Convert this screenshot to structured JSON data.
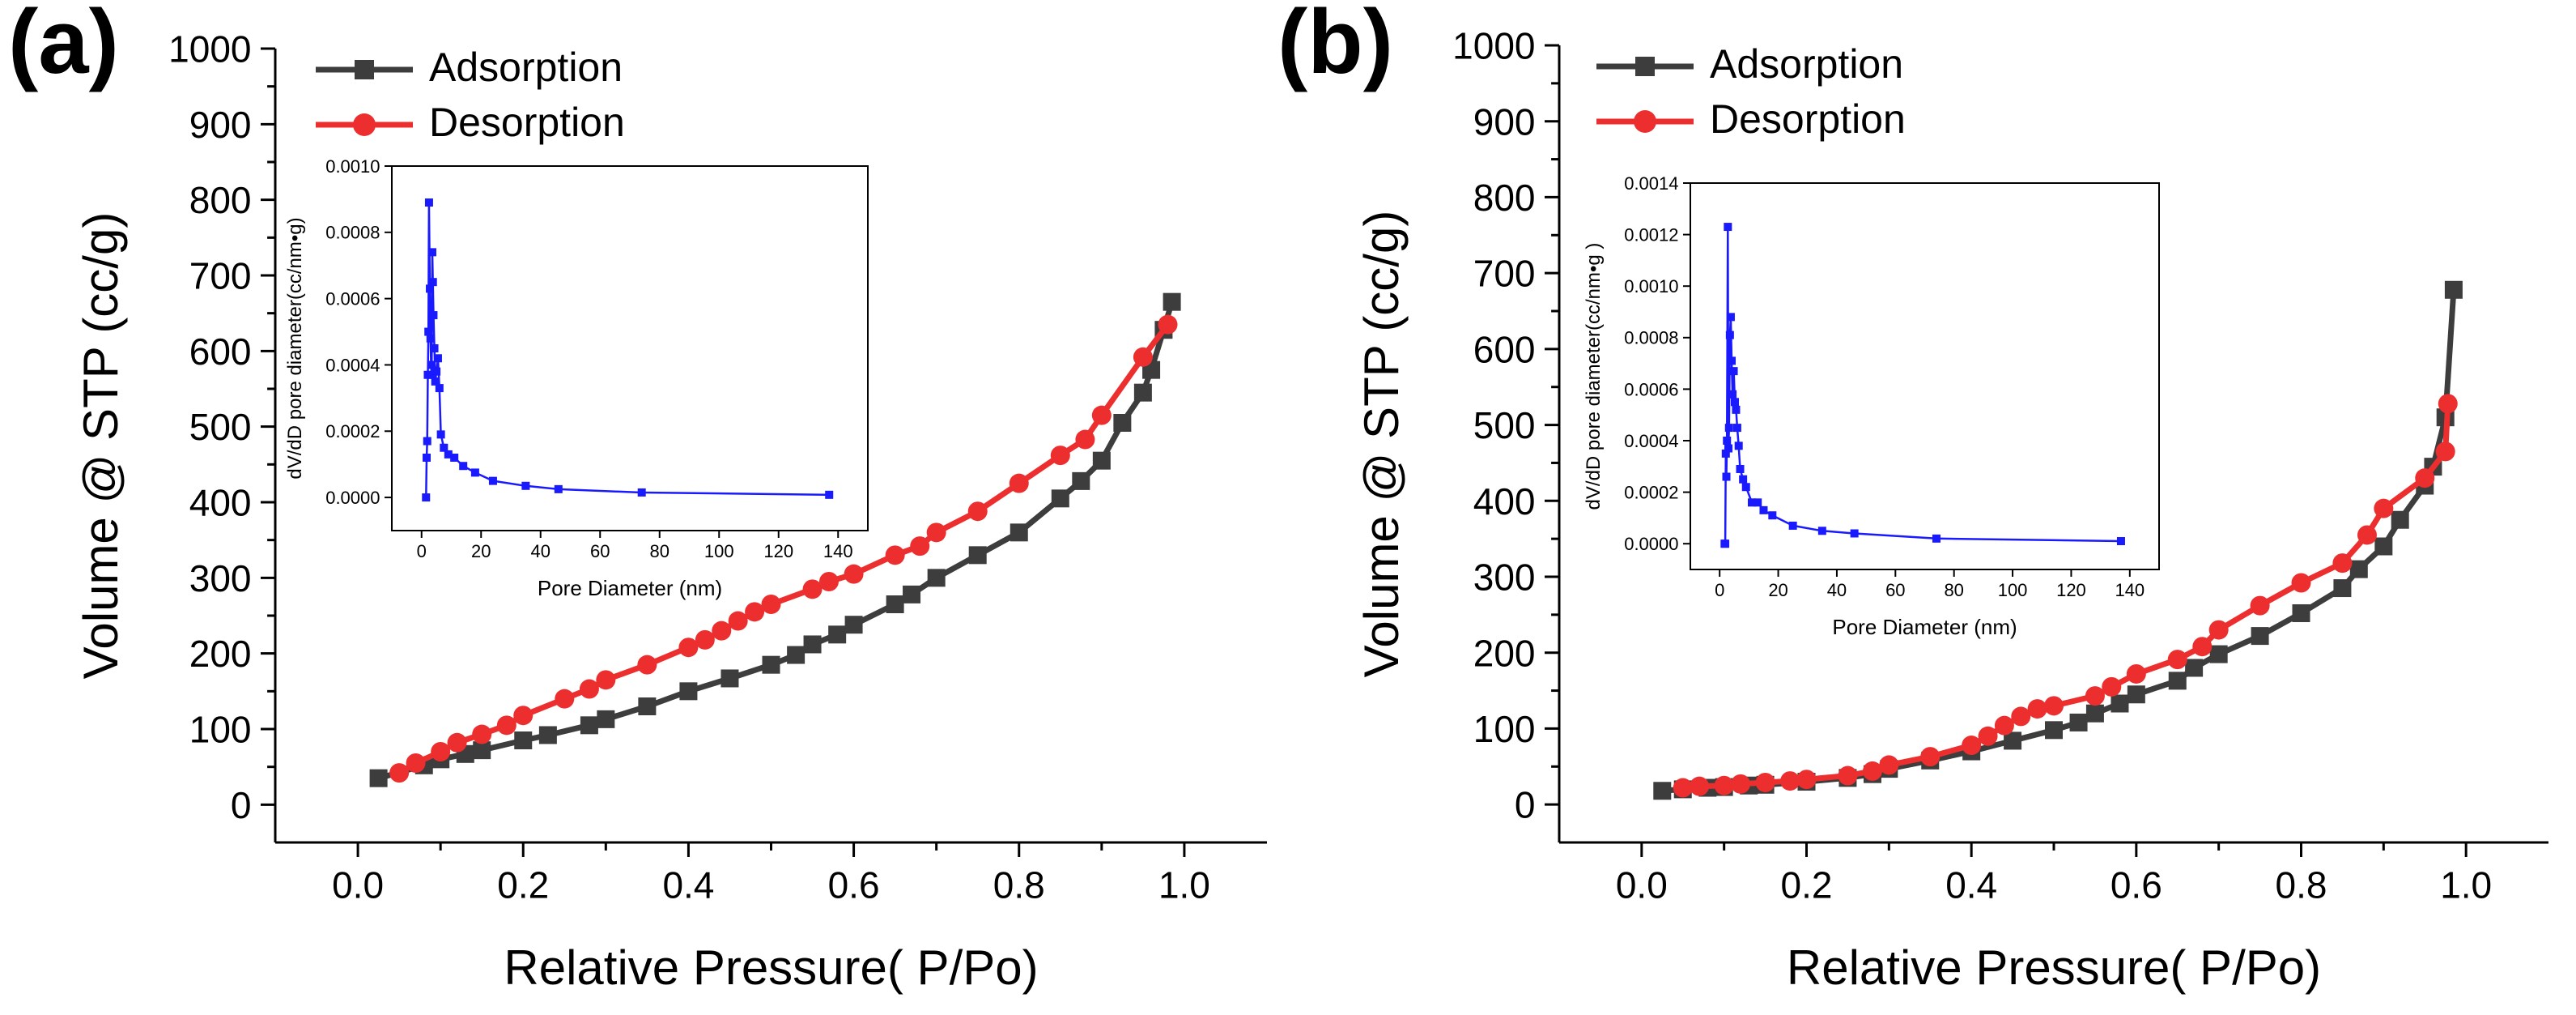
{
  "colors": {
    "adsorption": "#3d3d3d",
    "desorption": "#ed2e2e",
    "inset": "#1a1aff",
    "axis": "#000000"
  },
  "chart_data": [
    {
      "panel_label": "(a)",
      "type": "line",
      "xlabel": "Relative Pressure( P/Po)",
      "ylabel": "Volume @ STP (cc/g)",
      "xlim": [
        -0.1,
        1.1
      ],
      "ylim": [
        -50,
        1000
      ],
      "xticks": [
        "0.0",
        "0.2",
        "0.4",
        "0.6",
        "0.8",
        "1.0"
      ],
      "xtick_values": [
        0,
        0.2,
        0.4,
        0.6,
        0.8,
        1.0
      ],
      "yticks": [
        "0",
        "100",
        "200",
        "300",
        "400",
        "500",
        "600",
        "700",
        "800",
        "900",
        "1000"
      ],
      "ytick_values": [
        0,
        100,
        200,
        300,
        400,
        500,
        600,
        700,
        800,
        900,
        1000
      ],
      "legend": [
        "Adsorption",
        "Desorption"
      ],
      "series": [
        {
          "name": "Adsorption",
          "marker": "square",
          "x": [
            0.025,
            0.08,
            0.1,
            0.13,
            0.15,
            0.2,
            0.23,
            0.28,
            0.3,
            0.35,
            0.4,
            0.45,
            0.5,
            0.53,
            0.55,
            0.58,
            0.6,
            0.65,
            0.67,
            0.7,
            0.75,
            0.8,
            0.85,
            0.875,
            0.9,
            0.925,
            0.95,
            0.96,
            0.975,
            0.985
          ],
          "y": [
            35,
            52,
            60,
            67,
            72,
            85,
            92,
            105,
            113,
            130,
            150,
            167,
            185,
            198,
            212,
            225,
            238,
            265,
            278,
            300,
            330,
            360,
            405,
            428,
            455,
            505,
            545,
            575,
            628,
            665
          ]
        },
        {
          "name": "Desorption",
          "marker": "circle",
          "x": [
            0.05,
            0.07,
            0.1,
            0.12,
            0.15,
            0.18,
            0.2,
            0.25,
            0.28,
            0.3,
            0.35,
            0.4,
            0.42,
            0.44,
            0.46,
            0.48,
            0.5,
            0.55,
            0.57,
            0.6,
            0.65,
            0.68,
            0.7,
            0.75,
            0.8,
            0.85,
            0.88,
            0.9,
            0.95,
            0.98
          ],
          "y": [
            42,
            55,
            70,
            82,
            93,
            105,
            118,
            140,
            153,
            165,
            185,
            208,
            218,
            230,
            243,
            255,
            265,
            285,
            295,
            305,
            330,
            342,
            360,
            388,
            425,
            462,
            483,
            515,
            592,
            635
          ]
        }
      ],
      "inset": {
        "type": "line",
        "xlabel": "Pore Diameter (nm)",
        "ylabel": "dV/dD pore diameter(cc/nm•g)",
        "xlim": [
          -10,
          150
        ],
        "ylim": [
          -0.0001,
          0.001
        ],
        "xticks": [
          "0",
          "20",
          "40",
          "60",
          "80",
          "100",
          "120",
          "140"
        ],
        "xtick_values": [
          0,
          20,
          40,
          60,
          80,
          100,
          120,
          140
        ],
        "yticks": [
          "0.0000",
          "0.0002",
          "0.0004",
          "0.0006",
          "0.0008",
          "0.0010"
        ],
        "ytick_values": [
          0,
          0.0002,
          0.0004,
          0.0006,
          0.0008,
          0.001
        ],
        "x": [
          1.5,
          1.7,
          1.9,
          2.1,
          2.3,
          2.5,
          2.8,
          3.0,
          3.2,
          3.4,
          3.6,
          3.8,
          4.0,
          4.3,
          4.6,
          5.0,
          5.5,
          6.0,
          6.5,
          7.5,
          9,
          11,
          14,
          18,
          24,
          35,
          46,
          74,
          137
        ],
        "y": [
          0.0,
          0.00012,
          0.00017,
          0.00037,
          0.0005,
          0.00089,
          0.00063,
          0.00048,
          0.0004,
          0.00037,
          0.00074,
          0.00065,
          0.00055,
          0.00045,
          0.00035,
          0.00038,
          0.00042,
          0.00033,
          0.00019,
          0.00015,
          0.00013,
          0.00012,
          9.5e-05,
          7.5e-05,
          5e-05,
          3.5e-05,
          2.5e-05,
          1.5e-05,
          8e-06
        ]
      }
    },
    {
      "panel_label": "(b)",
      "type": "line",
      "xlabel": "Relative Pressure( P/Po)",
      "ylabel": "Volume @ STP (cc/g)",
      "xlim": [
        -0.1,
        1.1
      ],
      "ylim": [
        -50,
        1000
      ],
      "xticks": [
        "0.0",
        "0.2",
        "0.4",
        "0.6",
        "0.8",
        "1.0"
      ],
      "xtick_values": [
        0,
        0.2,
        0.4,
        0.6,
        0.8,
        1.0
      ],
      "yticks": [
        "0",
        "100",
        "200",
        "300",
        "400",
        "500",
        "600",
        "700",
        "800",
        "900",
        "1000"
      ],
      "ytick_values": [
        0,
        100,
        200,
        300,
        400,
        500,
        600,
        700,
        800,
        900,
        1000
      ],
      "legend": [
        "Adsorption",
        "Desorption"
      ],
      "series": [
        {
          "name": "Adsorption",
          "marker": "square",
          "x": [
            0.025,
            0.05,
            0.08,
            0.1,
            0.13,
            0.15,
            0.2,
            0.25,
            0.28,
            0.3,
            0.35,
            0.4,
            0.45,
            0.5,
            0.53,
            0.55,
            0.58,
            0.6,
            0.65,
            0.67,
            0.7,
            0.75,
            0.8,
            0.85,
            0.87,
            0.9,
            0.92,
            0.95,
            0.96,
            0.975,
            0.985
          ],
          "y": [
            18,
            20,
            22,
            23,
            25,
            26,
            30,
            35,
            40,
            47,
            58,
            70,
            84,
            98,
            108,
            120,
            133,
            145,
            163,
            180,
            198,
            222,
            252,
            285,
            310,
            340,
            375,
            420,
            445,
            510,
            678
          ]
        },
        {
          "name": "Desorption",
          "marker": "circle",
          "x": [
            0.05,
            0.07,
            0.1,
            0.12,
            0.15,
            0.18,
            0.2,
            0.25,
            0.28,
            0.3,
            0.35,
            0.4,
            0.42,
            0.44,
            0.46,
            0.48,
            0.5,
            0.55,
            0.57,
            0.6,
            0.65,
            0.68,
            0.7,
            0.75,
            0.8,
            0.85,
            0.88,
            0.9,
            0.95,
            0.975,
            0.978
          ],
          "y": [
            22,
            24,
            25,
            27,
            29,
            31,
            33,
            38,
            44,
            52,
            63,
            78,
            90,
            104,
            116,
            126,
            130,
            143,
            155,
            172,
            191,
            208,
            230,
            262,
            292,
            318,
            355,
            390,
            430,
            465,
            528
          ]
        }
      ],
      "inset": {
        "type": "line",
        "xlabel": "Pore Diameter (nm)",
        "ylabel": "dV/dD pore diameter(cc/nm•g )",
        "xlim": [
          -10,
          150
        ],
        "ylim": [
          -0.0001,
          0.0014
        ],
        "xticks": [
          "0",
          "20",
          "40",
          "60",
          "80",
          "100",
          "120",
          "140"
        ],
        "xtick_values": [
          0,
          20,
          40,
          60,
          80,
          100,
          120,
          140
        ],
        "yticks": [
          "0.0000",
          "0.0002",
          "0.0004",
          "0.0006",
          "0.0008",
          "0.0010",
          "0.0012",
          "0.0014"
        ],
        "ytick_values": [
          0,
          0.0002,
          0.0004,
          0.0006,
          0.0008,
          0.001,
          0.0012,
          0.0014
        ],
        "x": [
          1.7,
          1.9,
          2.1,
          2.3,
          2.5,
          2.8,
          3.0,
          3.2,
          3.5,
          3.8,
          4.1,
          4.4,
          4.8,
          5.2,
          5.6,
          6.0,
          6.5,
          7.0,
          8.0,
          9,
          11,
          13,
          15,
          18,
          25,
          35,
          46,
          74,
          137
        ],
        "y": [
          0.0,
          0.0,
          0.00035,
          0.00026,
          0.0004,
          0.00123,
          0.00037,
          0.00045,
          0.00081,
          0.00088,
          0.00071,
          0.00058,
          0.00067,
          0.00055,
          0.00052,
          0.00045,
          0.00038,
          0.00029,
          0.00025,
          0.00022,
          0.00016,
          0.00016,
          0.00013,
          0.00011,
          7e-05,
          5e-05,
          4e-05,
          2e-05,
          1e-05
        ]
      }
    }
  ]
}
